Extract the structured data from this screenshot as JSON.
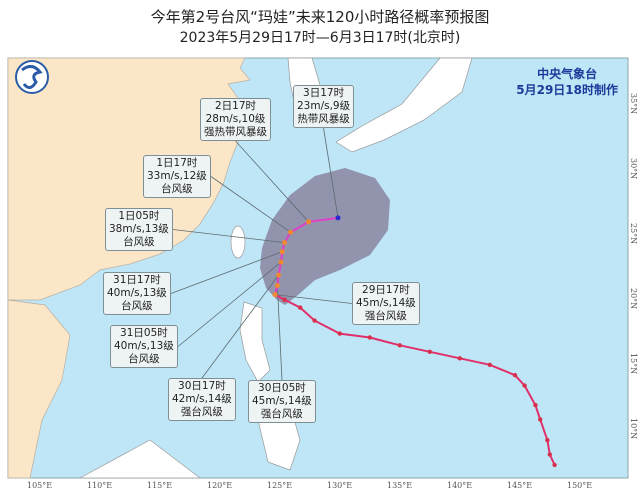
{
  "title": "今年第2号台风“玛娃”未来120小时路径概率预报图",
  "subtitle": "2023年5月29日17时—6月3日17时(北京时)",
  "agency": {
    "name": "中央气象台",
    "issued": "5月29日18时制作"
  },
  "colors": {
    "sea": "#bfe6f7",
    "land": "#fbe6c8",
    "cone": "#8a84a0",
    "past_track": "#e0306a",
    "forecast_track": "#e040c8"
  },
  "lon_ticks": [
    "105°E",
    "110°E",
    "115°E",
    "120°E",
    "125°E",
    "130°E",
    "135°E",
    "140°E",
    "145°E",
    "150°E"
  ],
  "lat_ticks": [
    "35°N",
    "30°N",
    "25°N",
    "20°N",
    "15°N",
    "10°N"
  ],
  "forecast_labels": [
    {
      "time": "3日17时",
      "wind": "23m/s,9级",
      "grade": "热带风暴级",
      "lon": 130.25,
      "lat": 25.7
    },
    {
      "time": "2日17时",
      "wind": "28m/s,10级",
      "grade": "强热带风暴级",
      "lon": 127.8,
      "lat": 25.4
    },
    {
      "time": "1日17时",
      "wind": "33m/s,12级",
      "grade": "台风级",
      "lon": 126.3,
      "lat": 24.6
    },
    {
      "time": "1日05时",
      "wind": "38m/s,13级",
      "grade": "台风级",
      "lon": 125.8,
      "lat": 23.8
    },
    {
      "time": "31日17时",
      "wind": "40m/s,13级",
      "grade": "台风级",
      "lon": 125.6,
      "lat": 23.1
    },
    {
      "time": "31日05时",
      "wind": "40m/s,13级",
      "grade": "台风级",
      "lon": 125.5,
      "lat": 22.3
    },
    {
      "time": "30日17时",
      "wind": "42m/s,14级",
      "grade": "强台风级",
      "lon": 125.3,
      "lat": 21.3
    },
    {
      "time": "30日05时",
      "wind": "45m/s,14级",
      "grade": "强台风级",
      "lon": 125.2,
      "lat": 20.5
    },
    {
      "time": "29日17时",
      "wind": "45m/s,14级",
      "grade": "强台风级",
      "lon": 125.0,
      "lat": 19.8
    }
  ],
  "past_track": [
    [
      148.3,
      6.7
    ],
    [
      147.9,
      7.5
    ],
    [
      147.7,
      8.6
    ],
    [
      147.1,
      10.2
    ],
    [
      146.7,
      11.3
    ],
    [
      145.8,
      12.8
    ],
    [
      145.0,
      13.6
    ],
    [
      142.9,
      14.4
    ],
    [
      140.4,
      14.9
    ],
    [
      137.9,
      15.4
    ],
    [
      135.4,
      15.9
    ],
    [
      132.9,
      16.5
    ],
    [
      130.4,
      16.8
    ],
    [
      128.3,
      17.8
    ],
    [
      127.1,
      18.8
    ],
    [
      125.8,
      19.4
    ],
    [
      125.0,
      19.8
    ]
  ]
}
